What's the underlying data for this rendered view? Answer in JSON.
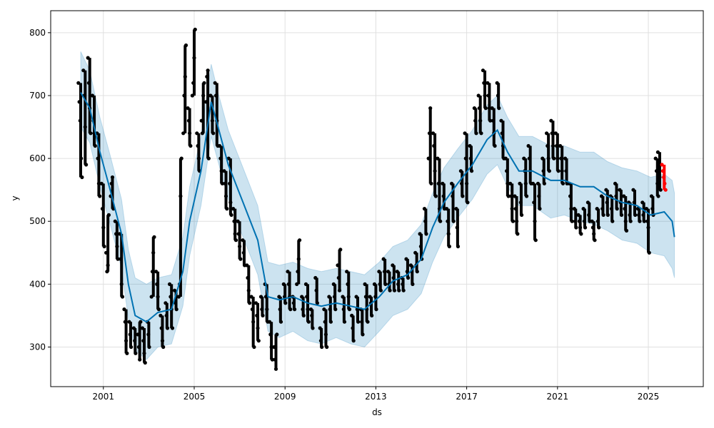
{
  "chart_data": {
    "type": "line",
    "title": "",
    "xlabel": "ds",
    "ylabel": "y",
    "xlim": [
      1998.68,
      2027.42
    ],
    "ylim": [
      237,
      835
    ],
    "grid": true,
    "x_ticks": [
      2001,
      2005,
      2009,
      2013,
      2017,
      2021,
      2025
    ],
    "x_tick_labels": [
      "2001",
      "2005",
      "2009",
      "2013",
      "2017",
      "2021",
      "2025"
    ],
    "y_ticks": [
      300,
      400,
      500,
      600,
      700,
      800
    ],
    "y_tick_labels": [
      "300",
      "400",
      "500",
      "600",
      "700",
      "800"
    ],
    "colors": {
      "forecast": "#0072B2",
      "interval": "#0072B2",
      "observed": "#000000",
      "holdout": "#ff0000",
      "grid": "#e0e0e0"
    },
    "forecast": [
      [
        2000.0,
        705,
        650,
        770
      ],
      [
        2000.4,
        680,
        625,
        740
      ],
      [
        2000.85,
        610,
        555,
        665
      ],
      [
        2001.3,
        550,
        495,
        605
      ],
      [
        2001.8,
        480,
        425,
        535
      ],
      [
        2002.1,
        400,
        345,
        455
      ],
      [
        2002.4,
        350,
        295,
        410
      ],
      [
        2002.9,
        340,
        280,
        400
      ],
      [
        2003.4,
        355,
        300,
        410
      ],
      [
        2004.0,
        360,
        305,
        415
      ],
      [
        2004.5,
        420,
        365,
        475
      ],
      [
        2004.8,
        500,
        445,
        555
      ],
      [
        2005.3,
        580,
        525,
        635
      ],
      [
        2005.75,
        690,
        635,
        750
      ],
      [
        2006.05,
        650,
        595,
        705
      ],
      [
        2006.5,
        590,
        535,
        645
      ],
      [
        2007.15,
        530,
        475,
        585
      ],
      [
        2007.8,
        470,
        415,
        525
      ],
      [
        2008.25,
        380,
        325,
        435
      ],
      [
        2008.75,
        375,
        315,
        430
      ],
      [
        2009.35,
        380,
        325,
        435
      ],
      [
        2010.0,
        370,
        310,
        425
      ],
      [
        2010.6,
        365,
        305,
        420
      ],
      [
        2011.25,
        370,
        315,
        425
      ],
      [
        2011.9,
        365,
        305,
        420
      ],
      [
        2012.5,
        360,
        300,
        415
      ],
      [
        2013.15,
        380,
        325,
        435
      ],
      [
        2013.75,
        405,
        350,
        460
      ],
      [
        2014.4,
        415,
        360,
        470
      ],
      [
        2015.0,
        440,
        385,
        495
      ],
      [
        2015.5,
        490,
        435,
        545
      ],
      [
        2016.0,
        530,
        475,
        585
      ],
      [
        2016.6,
        560,
        505,
        615
      ],
      [
        2017.25,
        590,
        535,
        645
      ],
      [
        2017.9,
        630,
        575,
        685
      ],
      [
        2018.35,
        645,
        590,
        700
      ],
      [
        2018.8,
        610,
        555,
        665
      ],
      [
        2019.3,
        580,
        525,
        635
      ],
      [
        2019.9,
        580,
        525,
        635
      ],
      [
        2020.7,
        565,
        505,
        620
      ],
      [
        2021.3,
        565,
        510,
        620
      ],
      [
        2022.0,
        555,
        500,
        610
      ],
      [
        2022.6,
        555,
        495,
        610
      ],
      [
        2023.2,
        540,
        485,
        595
      ],
      [
        2023.85,
        530,
        470,
        585
      ],
      [
        2024.5,
        525,
        465,
        580
      ],
      [
        2025.1,
        510,
        450,
        570
      ],
      [
        2025.7,
        515,
        445,
        575
      ],
      [
        2026.05,
        500,
        425,
        565
      ],
      [
        2026.15,
        475,
        410,
        545
      ]
    ],
    "observed": [
      [
        2000.0,
        [
          720,
          690,
          660,
          600,
          570
        ]
      ],
      [
        2000.2,
        [
          740,
          700,
          650,
          590
        ]
      ],
      [
        2000.4,
        [
          760,
          720,
          680,
          640
        ]
      ],
      [
        2000.6,
        [
          700,
          660,
          640,
          620
        ]
      ],
      [
        2000.8,
        [
          640,
          600,
          560,
          540
        ]
      ],
      [
        2001.0,
        [
          560,
          520,
          490,
          460
        ]
      ],
      [
        2001.2,
        [
          450,
          420,
          430,
          510
        ]
      ],
      [
        2001.4,
        [
          540,
          560,
          570,
          520
        ]
      ],
      [
        2001.6,
        [
          500,
          480,
          460,
          440
        ]
      ],
      [
        2001.8,
        [
          480,
          440,
          400,
          380
        ]
      ],
      [
        2002.0,
        [
          360,
          340,
          310,
          290
        ]
      ],
      [
        2002.2,
        [
          340,
          320,
          300
        ]
      ],
      [
        2002.4,
        [
          330,
          310,
          290
        ]
      ],
      [
        2002.6,
        [
          320,
          300,
          280,
          340
        ]
      ],
      [
        2002.8,
        [
          330,
          310,
          290,
          275
        ]
      ],
      [
        2003.0,
        [
          340,
          320,
          300
        ]
      ],
      [
        2003.2,
        [
          380,
          420,
          450,
          475
        ]
      ],
      [
        2003.4,
        [
          420,
          400,
          380,
          360
        ]
      ],
      [
        2003.6,
        [
          350,
          330,
          310,
          300
        ]
      ],
      [
        2003.8,
        [
          370,
          350,
          330
        ]
      ],
      [
        2004.0,
        [
          400,
          380,
          360,
          330
        ]
      ],
      [
        2004.2,
        [
          390,
          370,
          360
        ]
      ],
      [
        2004.4,
        [
          380,
          400,
          540,
          600
        ]
      ],
      [
        2004.6,
        [
          640,
          700,
          730,
          780
        ]
      ],
      [
        2004.8,
        [
          680,
          660,
          640,
          620
        ]
      ],
      [
        2005.0,
        [
          700,
          720,
          760,
          805
        ]
      ],
      [
        2005.2,
        [
          640,
          620,
          600,
          580
        ]
      ],
      [
        2005.4,
        [
          660,
          640,
          700,
          720
        ]
      ],
      [
        2005.6,
        [
          690,
          730,
          740,
          600
        ]
      ],
      [
        2005.8,
        [
          700,
          680,
          660,
          640
        ]
      ],
      [
        2006.0,
        [
          720,
          700,
          660,
          620
        ]
      ],
      [
        2006.2,
        [
          620,
          600,
          580,
          560
        ]
      ],
      [
        2006.4,
        [
          580,
          560,
          540,
          520
        ]
      ],
      [
        2006.6,
        [
          600,
          560,
          530,
          510
        ]
      ],
      [
        2006.8,
        [
          520,
          500,
          480,
          470
        ]
      ],
      [
        2007.0,
        [
          500,
          480,
          460,
          440
        ]
      ],
      [
        2007.2,
        [
          470,
          450,
          430
        ]
      ],
      [
        2007.4,
        [
          430,
          410,
          390,
          370
        ]
      ],
      [
        2007.6,
        [
          380,
          360,
          340,
          300
        ]
      ],
      [
        2007.8,
        [
          370,
          350,
          330,
          310
        ]
      ],
      [
        2008.0,
        [
          380,
          360,
          350
        ]
      ],
      [
        2008.2,
        [
          400,
          380,
          360,
          340
        ]
      ],
      [
        2008.4,
        [
          340,
          320,
          300,
          280
        ]
      ],
      [
        2008.6,
        [
          300,
          280,
          265,
          320
        ]
      ],
      [
        2008.8,
        [
          380,
          360,
          340
        ]
      ],
      [
        2009.0,
        [
          400,
          380,
          370
        ]
      ],
      [
        2009.2,
        [
          420,
          400,
          380,
          360
        ]
      ],
      [
        2009.4,
        [
          380,
          370,
          360
        ]
      ],
      [
        2009.6,
        [
          400,
          420,
          440,
          470
        ]
      ],
      [
        2009.8,
        [
          380,
          360,
          350
        ]
      ],
      [
        2010.0,
        [
          400,
          380,
          360,
          340
        ]
      ],
      [
        2010.2,
        [
          360,
          350,
          330
        ]
      ],
      [
        2010.4,
        [
          410,
          390,
          370
        ]
      ],
      [
        2010.6,
        [
          330,
          310,
          300
        ]
      ],
      [
        2010.8,
        [
          360,
          340,
          320,
          300
        ]
      ],
      [
        2011.0,
        [
          380,
          360,
          340
        ]
      ],
      [
        2011.2,
        [
          400,
          380,
          360
        ]
      ],
      [
        2011.4,
        [
          430,
          410,
          390,
          455
        ]
      ],
      [
        2011.6,
        [
          380,
          360,
          340
        ]
      ],
      [
        2011.8,
        [
          420,
          400,
          380,
          360
        ]
      ],
      [
        2012.0,
        [
          350,
          330,
          310
        ]
      ],
      [
        2012.2,
        [
          380,
          360,
          340
        ]
      ],
      [
        2012.4,
        [
          360,
          340,
          320
        ]
      ],
      [
        2012.6,
        [
          400,
          380,
          360,
          340
        ]
      ],
      [
        2012.8,
        [
          380,
          370,
          350
        ]
      ],
      [
        2013.0,
        [
          400,
          380,
          360
        ]
      ],
      [
        2013.2,
        [
          420,
          400,
          390
        ]
      ],
      [
        2013.4,
        [
          440,
          420,
          400
        ]
      ],
      [
        2013.6,
        [
          420,
          400,
          390
        ]
      ],
      [
        2013.8,
        [
          430,
          410,
          390
        ]
      ],
      [
        2014.0,
        [
          420,
          400,
          390
        ]
      ],
      [
        2014.2,
        [
          410,
          400,
          390
        ]
      ],
      [
        2014.4,
        [
          440,
          420,
          410
        ]
      ],
      [
        2014.6,
        [
          430,
          420,
          400
        ]
      ],
      [
        2014.8,
        [
          450,
          430,
          420
        ]
      ],
      [
        2015.0,
        [
          480,
          460,
          440
        ]
      ],
      [
        2015.2,
        [
          520,
          500,
          480
        ]
      ],
      [
        2015.4,
        [
          600,
          640,
          680,
          560
        ]
      ],
      [
        2015.6,
        [
          640,
          620,
          580,
          540
        ]
      ],
      [
        2015.8,
        [
          600,
          560,
          520,
          500
        ]
      ],
      [
        2016.0,
        [
          560,
          540,
          520
        ]
      ],
      [
        2016.2,
        [
          520,
          500,
          480,
          460
        ]
      ],
      [
        2016.4,
        [
          560,
          540,
          500
        ]
      ],
      [
        2016.6,
        [
          520,
          490,
          460
        ]
      ],
      [
        2016.8,
        [
          580,
          560,
          540
        ]
      ],
      [
        2017.0,
        [
          640,
          600,
          560,
          530
        ]
      ],
      [
        2017.2,
        [
          620,
          600,
          580
        ]
      ],
      [
        2017.4,
        [
          680,
          660,
          640
        ]
      ],
      [
        2017.6,
        [
          700,
          680,
          660,
          640
        ]
      ],
      [
        2017.8,
        [
          740,
          720,
          700,
          680
        ]
      ],
      [
        2018.0,
        [
          720,
          700,
          680,
          660
        ]
      ],
      [
        2018.2,
        [
          680,
          660,
          640,
          620
        ]
      ],
      [
        2018.4,
        [
          720,
          700,
          680
        ]
      ],
      [
        2018.6,
        [
          660,
          640,
          620,
          600
        ]
      ],
      [
        2018.8,
        [
          600,
          580,
          560,
          540
        ]
      ],
      [
        2019.0,
        [
          560,
          540,
          520,
          500
        ]
      ],
      [
        2019.2,
        [
          540,
          520,
          500,
          480
        ]
      ],
      [
        2019.4,
        [
          560,
          530,
          510
        ]
      ],
      [
        2019.6,
        [
          600,
          580,
          560,
          540
        ]
      ],
      [
        2019.8,
        [
          620,
          600,
          580,
          560
        ]
      ],
      [
        2020.0,
        [
          560,
          530,
          500,
          470
        ]
      ],
      [
        2020.2,
        [
          560,
          540,
          520
        ]
      ],
      [
        2020.4,
        [
          600,
          580,
          560
        ]
      ],
      [
        2020.6,
        [
          640,
          620,
          600,
          580
        ]
      ],
      [
        2020.8,
        [
          660,
          640,
          620,
          600
        ]
      ],
      [
        2021.0,
        [
          640,
          620,
          600,
          580
        ]
      ],
      [
        2021.2,
        [
          620,
          600,
          580,
          560
        ]
      ],
      [
        2021.4,
        [
          600,
          580,
          560
        ]
      ],
      [
        2021.6,
        [
          560,
          540,
          520,
          500
        ]
      ],
      [
        2021.8,
        [
          520,
          500,
          490
        ]
      ],
      [
        2022.0,
        [
          510,
          500,
          490,
          480
        ]
      ],
      [
        2022.2,
        [
          520,
          500,
          490
        ]
      ],
      [
        2022.4,
        [
          530,
          510,
          500
        ]
      ],
      [
        2022.6,
        [
          500,
          490,
          480,
          470
        ]
      ],
      [
        2022.8,
        [
          520,
          500,
          490
        ]
      ],
      [
        2023.0,
        [
          540,
          520,
          510
        ]
      ],
      [
        2023.2,
        [
          550,
          530,
          510
        ]
      ],
      [
        2023.4,
        [
          540,
          520,
          500
        ]
      ],
      [
        2023.6,
        [
          560,
          540,
          520
        ]
      ],
      [
        2023.8,
        [
          550,
          530,
          510
        ]
      ],
      [
        2024.0,
        [
          540,
          520,
          500,
          485
        ]
      ],
      [
        2024.2,
        [
          530,
          510,
          500
        ]
      ],
      [
        2024.4,
        [
          550,
          530,
          510
        ]
      ],
      [
        2024.6,
        [
          520,
          510,
          500
        ]
      ],
      [
        2024.8,
        [
          530,
          510,
          500
        ]
      ],
      [
        2025.0,
        [
          520,
          500,
          490,
          450
        ]
      ],
      [
        2025.2,
        [
          540,
          520,
          510
        ]
      ],
      [
        2025.4,
        [
          600,
          580,
          560,
          540
        ]
      ],
      [
        2025.5,
        [
          610,
          590,
          570,
          550
        ]
      ]
    ],
    "holdout": [
      [
        2025.7,
        [
          590,
          580,
          570,
          560,
          550
        ]
      ]
    ]
  }
}
